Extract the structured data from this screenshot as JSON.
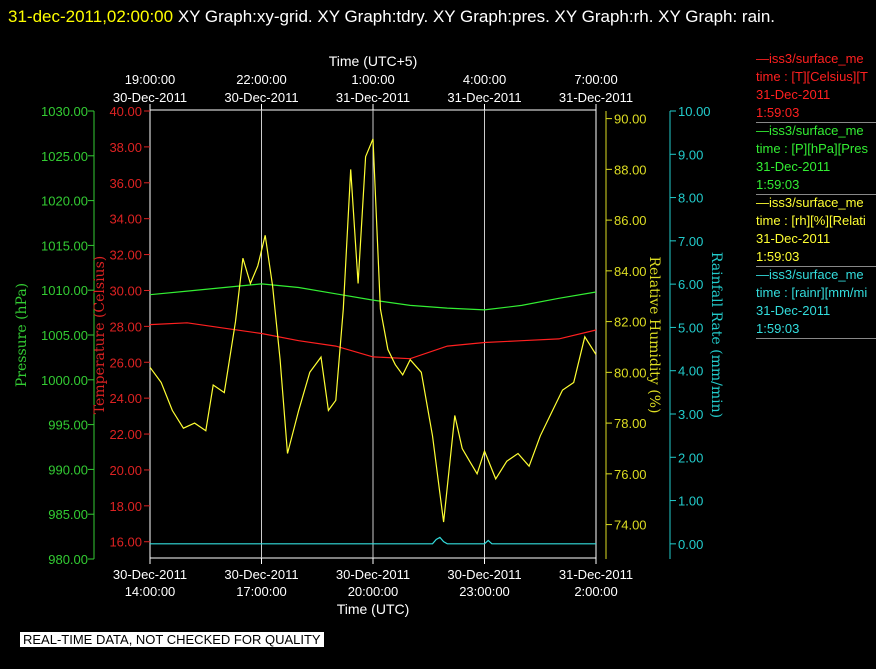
{
  "title": {
    "date": "31-dec-2011,02:00:00",
    "rest": " XY Graph:xy-grid.  XY Graph:tdry.  XY Graph:pres.  XY Graph:rh.  XY Graph: rain."
  },
  "notice": "REAL-TIME DATA, NOT CHECKED FOR QUALITY",
  "legend": [
    {
      "line1": "—iss3/surface_me",
      "line2": "time : [T][Celsius][T",
      "line3": "31-Dec-2011",
      "line4": "1:59:03",
      "color": "#ff2020"
    },
    {
      "line1": "—iss3/surface_me",
      "line2": "time : [P][hPa][Pres",
      "line3": "31-Dec-2011",
      "line4": "1:59:03",
      "color": "#33ee33"
    },
    {
      "line1": "—iss3/surface_me",
      "line2": "time : [rh][%][Relati",
      "line3": "31-Dec-2011",
      "line4": "1:59:03",
      "color": "#ffff33"
    },
    {
      "line1": "—iss3/surface_me",
      "line2": "time : [rainr][mm/mi",
      "line3": "31-Dec-2011",
      "line4": "1:59:03",
      "color": "#33dddd"
    }
  ],
  "chart_data": {
    "type": "line",
    "top_axis_label": "Time (UTC+5)",
    "bottom_axis_label": "Time (UTC)",
    "x_top_ticks": [
      {
        "date": "30-Dec-2011",
        "time": "19:00:00"
      },
      {
        "date": "30-Dec-2011",
        "time": "22:00:00"
      },
      {
        "date": "31-Dec-2011",
        "time": "1:00:00"
      },
      {
        "date": "31-Dec-2011",
        "time": "4:00:00"
      },
      {
        "date": "31-Dec-2011",
        "time": "7:00:00"
      }
    ],
    "x_bottom_ticks": [
      {
        "date": "30-Dec-2011",
        "time": "14:00:00"
      },
      {
        "date": "30-Dec-2011",
        "time": "17:00:00"
      },
      {
        "date": "30-Dec-2011",
        "time": "20:00:00"
      },
      {
        "date": "30-Dec-2011",
        "time": "23:00:00"
      },
      {
        "date": "31-Dec-2011",
        "time": "2:00:00"
      }
    ],
    "x_tick_hours": [
      0,
      3,
      6,
      9,
      12
    ],
    "xlim_hours_since_1400utc": [
      0,
      12
    ],
    "axes": {
      "pressure": {
        "label": "Pressure (hPa)",
        "color": "#33cc33",
        "ticks": [
          "980.00",
          "985.00",
          "990.00",
          "995.00",
          "1000.00",
          "1005.00",
          "1010.00",
          "1015.00",
          "1020.00",
          "1025.00",
          "1030.00"
        ],
        "ylim": [
          980,
          1030
        ]
      },
      "temperature": {
        "label": "Temperature (Celsius)",
        "color": "#dd2222",
        "ticks": [
          "16.00",
          "18.00",
          "20.00",
          "22.00",
          "24.00",
          "26.00",
          "28.00",
          "30.00",
          "32.00",
          "34.00",
          "36.00",
          "38.00",
          "40.00"
        ],
        "ylim": [
          15.4,
          40
        ]
      },
      "humidity": {
        "label": "Relative Humidity (%)",
        "color": "#dddd22",
        "ticks": [
          "74.00",
          "76.00",
          "78.00",
          "80.00",
          "82.00",
          "84.00",
          "86.00",
          "88.00",
          "90.00"
        ],
        "ylim": [
          72.9,
          90.3
        ]
      },
      "rainfall": {
        "label": "Rainfall Rate (mm/min)",
        "color": "#22cccc",
        "ticks": [
          "0.00",
          "1.00",
          "2.00",
          "3.00",
          "4.00",
          "5.00",
          "6.00",
          "7.00",
          "8.00",
          "9.00",
          "10.00"
        ],
        "ylim": [
          -0.2,
          10
        ]
      }
    },
    "series": [
      {
        "axis": "pressure",
        "color": "#33ee33",
        "x": [
          0,
          1,
          2,
          3,
          4,
          5,
          6,
          7,
          8,
          9,
          10,
          11,
          12
        ],
        "y": [
          1009.5,
          1009.9,
          1010.3,
          1010.7,
          1010.3,
          1009.6,
          1008.9,
          1008.3,
          1008.0,
          1007.8,
          1008.3,
          1009.1,
          1009.8
        ]
      },
      {
        "axis": "temperature",
        "color": "#ff2020",
        "x": [
          0,
          1,
          2,
          3,
          4,
          5,
          6,
          7,
          8,
          9,
          10,
          11,
          12
        ],
        "y": [
          28.1,
          28.2,
          27.9,
          27.6,
          27.2,
          26.9,
          26.3,
          26.2,
          26.9,
          27.1,
          27.2,
          27.3,
          27.8
        ]
      },
      {
        "axis": "humidity",
        "color": "#ffff33",
        "x": [
          0,
          0.3,
          0.6,
          0.9,
          1.2,
          1.5,
          1.7,
          2.0,
          2.3,
          2.5,
          2.7,
          2.9,
          3.1,
          3.3,
          3.5,
          3.7,
          4.0,
          4.3,
          4.6,
          4.8,
          5.0,
          5.2,
          5.4,
          5.6,
          5.8,
          6.0,
          6.2,
          6.4,
          6.6,
          6.8,
          7.0,
          7.3,
          7.6,
          7.9,
          8.2,
          8.4,
          8.6,
          8.8,
          9.0,
          9.3,
          9.6,
          9.9,
          10.2,
          10.5,
          10.8,
          11.1,
          11.4,
          11.7,
          12.0
        ],
        "y": [
          80.2,
          79.6,
          78.5,
          77.8,
          78.0,
          77.7,
          79.5,
          79.2,
          82.0,
          84.5,
          83.5,
          84.2,
          85.4,
          83.4,
          80.5,
          76.8,
          78.5,
          80.0,
          80.6,
          78.5,
          78.9,
          82.5,
          88.0,
          83.5,
          88.5,
          89.2,
          82.5,
          80.9,
          80.3,
          79.9,
          80.5,
          80.0,
          77.5,
          74.1,
          78.3,
          77.0,
          76.5,
          76.0,
          76.9,
          75.8,
          76.5,
          76.8,
          76.3,
          77.5,
          78.4,
          79.3,
          79.6,
          81.4,
          80.7
        ]
      },
      {
        "axis": "rainfall",
        "color": "#33dddd",
        "x": [
          0,
          7.6,
          7.7,
          7.8,
          7.9,
          8.0,
          9.0,
          9.1,
          9.2,
          12.0
        ],
        "y": [
          0,
          0,
          0.1,
          0.15,
          0.05,
          0,
          0,
          0.08,
          0,
          0
        ]
      }
    ]
  }
}
